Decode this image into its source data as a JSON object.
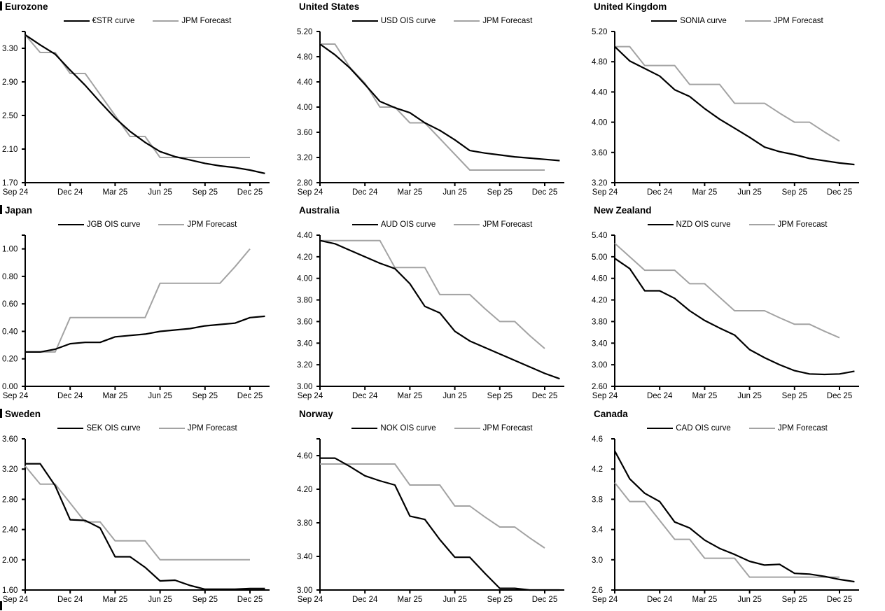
{
  "x_axis": {
    "tick_labels": [
      "Sep 24",
      "Dec 24",
      "Mar 25",
      "Jun 25",
      "Sep 25",
      "Dec 25"
    ],
    "tick_months": [
      0,
      3,
      6,
      9,
      12,
      15
    ],
    "months_total": 16
  },
  "colors": {
    "curve": "#000000",
    "forecast": "#a3a3a3",
    "axis": "#000000"
  },
  "chart_data": [
    {
      "type": "line",
      "title": "Eurozone",
      "ylim": [
        1.7,
        3.5
      ],
      "yticks": [
        1.7,
        2.1,
        2.5,
        2.9,
        3.3
      ],
      "decimals": 2,
      "top_tick": true,
      "series": [
        {
          "name": "€STR curve",
          "color": "#000000",
          "values": [
            3.46,
            3.34,
            3.23,
            3.04,
            2.86,
            2.66,
            2.47,
            2.31,
            2.18,
            2.07,
            2.01,
            1.97,
            1.93,
            1.9,
            1.88,
            1.85,
            1.81
          ]
        },
        {
          "name": "JPM Forecast",
          "color": "#a3a3a3",
          "values": [
            3.46,
            3.25,
            3.25,
            3.0,
            3.0,
            2.75,
            2.5,
            2.25,
            2.25,
            2.0,
            2.0,
            2.0,
            2.0,
            2.0,
            2.0,
            2.0
          ]
        }
      ]
    },
    {
      "type": "line",
      "title": "United States",
      "ylim": [
        2.8,
        5.2
      ],
      "yticks": [
        2.8,
        3.2,
        3.6,
        4.0,
        4.4,
        4.8,
        5.2
      ],
      "decimals": 2,
      "top_tick": false,
      "series": [
        {
          "name": "USD OIS curve",
          "color": "#000000",
          "values": [
            5.0,
            4.83,
            4.62,
            4.36,
            4.09,
            3.99,
            3.91,
            3.75,
            3.63,
            3.48,
            3.31,
            3.27,
            3.24,
            3.21,
            3.19,
            3.17,
            3.15
          ]
        },
        {
          "name": "JPM Forecast",
          "color": "#a3a3a3",
          "values": [
            5.0,
            5.0,
            4.63,
            4.38,
            4.0,
            4.0,
            3.75,
            3.75,
            3.5,
            3.25,
            3.0,
            3.0,
            3.0,
            3.0,
            3.0,
            3.0
          ]
        }
      ]
    },
    {
      "type": "line",
      "title": "United Kingdom",
      "ylim": [
        3.2,
        5.2
      ],
      "yticks": [
        3.2,
        3.6,
        4.0,
        4.4,
        4.8,
        5.2
      ],
      "decimals": 2,
      "top_tick": false,
      "series": [
        {
          "name": "SONIA curve",
          "color": "#000000",
          "values": [
            5.0,
            4.81,
            4.71,
            4.61,
            4.43,
            4.34,
            4.18,
            4.04,
            3.92,
            3.8,
            3.67,
            3.61,
            3.57,
            3.52,
            3.49,
            3.46,
            3.44
          ]
        },
        {
          "name": "JPM Forecast",
          "color": "#a3a3a3",
          "values": [
            5.0,
            5.0,
            4.75,
            4.75,
            4.75,
            4.5,
            4.5,
            4.5,
            4.25,
            4.25,
            4.25,
            4.12,
            4.0,
            4.0,
            3.87,
            3.75
          ]
        }
      ]
    },
    {
      "type": "line",
      "title": "Japan",
      "ylim": [
        0.0,
        1.1
      ],
      "yticks": [
        0.0,
        0.2,
        0.4,
        0.6,
        0.8,
        1.0
      ],
      "decimals": 2,
      "top_tick": true,
      "series": [
        {
          "name": "JGB OIS curve",
          "color": "#000000",
          "values": [
            0.25,
            0.25,
            0.27,
            0.31,
            0.32,
            0.32,
            0.36,
            0.37,
            0.38,
            0.4,
            0.41,
            0.42,
            0.44,
            0.45,
            0.46,
            0.5,
            0.51
          ]
        },
        {
          "name": "JPM Forecast",
          "color": "#a3a3a3",
          "values": [
            0.25,
            0.25,
            0.25,
            0.5,
            0.5,
            0.5,
            0.5,
            0.5,
            0.5,
            0.75,
            0.75,
            0.75,
            0.75,
            0.75,
            0.87,
            1.0
          ]
        }
      ]
    },
    {
      "type": "line",
      "title": "Australia",
      "ylim": [
        3.0,
        4.4
      ],
      "yticks": [
        3.0,
        3.2,
        3.4,
        3.6,
        3.8,
        4.0,
        4.2,
        4.4
      ],
      "decimals": 2,
      "top_tick": false,
      "series": [
        {
          "name": "AUD OIS curve",
          "color": "#000000",
          "values": [
            4.35,
            4.32,
            4.26,
            4.2,
            4.14,
            4.09,
            3.95,
            3.74,
            3.68,
            3.51,
            3.42,
            3.36,
            3.3,
            3.24,
            3.18,
            3.12,
            3.07
          ]
        },
        {
          "name": "JPM Forecast",
          "color": "#a3a3a3",
          "values": [
            4.35,
            4.35,
            4.35,
            4.35,
            4.35,
            4.1,
            4.1,
            4.1,
            3.85,
            3.85,
            3.85,
            3.72,
            3.6,
            3.6,
            3.47,
            3.35
          ]
        }
      ]
    },
    {
      "type": "line",
      "title": "New Zealand",
      "ylim": [
        2.6,
        5.4
      ],
      "yticks": [
        2.6,
        3.0,
        3.4,
        3.8,
        4.2,
        4.6,
        5.0,
        5.4
      ],
      "decimals": 2,
      "top_tick": false,
      "series": [
        {
          "name": "NZD OIS curve",
          "color": "#000000",
          "values": [
            4.97,
            4.78,
            4.37,
            4.37,
            4.23,
            4.0,
            3.82,
            3.68,
            3.55,
            3.28,
            3.13,
            3.0,
            2.89,
            2.83,
            2.82,
            2.83,
            2.88
          ]
        },
        {
          "name": "JPM Forecast",
          "color": "#a3a3a3",
          "values": [
            5.25,
            5.0,
            4.75,
            4.75,
            4.75,
            4.5,
            4.5,
            4.25,
            4.0,
            4.0,
            4.0,
            3.87,
            3.75,
            3.75,
            3.62,
            3.5
          ]
        }
      ]
    },
    {
      "type": "line",
      "title": "Sweden",
      "ylim": [
        1.6,
        3.6
      ],
      "yticks": [
        1.6,
        2.0,
        2.4,
        2.8,
        3.2,
        3.6
      ],
      "decimals": 2,
      "top_tick": false,
      "series": [
        {
          "name": "SEK OIS curve",
          "color": "#000000",
          "values": [
            3.27,
            3.27,
            2.98,
            2.53,
            2.52,
            2.42,
            2.04,
            2.04,
            1.9,
            1.72,
            1.73,
            1.66,
            1.61,
            1.61,
            1.61,
            1.62,
            1.62
          ]
        },
        {
          "name": "JPM Forecast",
          "color": "#a3a3a3",
          "values": [
            3.24,
            3.0,
            3.0,
            2.75,
            2.5,
            2.5,
            2.25,
            2.25,
            2.25,
            2.0,
            2.0,
            2.0,
            2.0,
            2.0,
            2.0,
            2.0
          ]
        }
      ]
    },
    {
      "type": "line",
      "title": "Norway",
      "ylim": [
        3.0,
        4.8
      ],
      "yticks": [
        3.0,
        3.4,
        3.8,
        4.2,
        4.6
      ],
      "decimals": 2,
      "top_tick": true,
      "series": [
        {
          "name": "NOK OIS curve",
          "color": "#000000",
          "values": [
            4.57,
            4.57,
            4.47,
            4.36,
            4.3,
            4.25,
            3.88,
            3.84,
            3.6,
            3.39,
            3.39,
            3.2,
            3.02,
            3.02,
            3.0,
            3.0,
            3.0
          ]
        },
        {
          "name": "JPM Forecast",
          "color": "#a3a3a3",
          "values": [
            4.5,
            4.5,
            4.5,
            4.5,
            4.5,
            4.5,
            4.25,
            4.25,
            4.25,
            4.0,
            4.0,
            3.87,
            3.75,
            3.75,
            3.62,
            3.5
          ]
        }
      ]
    },
    {
      "type": "line",
      "title": "Canada",
      "ylim": [
        2.6,
        4.6
      ],
      "yticks": [
        2.6,
        3.0,
        3.4,
        3.8,
        4.2,
        4.6
      ],
      "decimals": 1,
      "top_tick": false,
      "series": [
        {
          "name": "CAD OIS curve",
          "color": "#000000",
          "values": [
            4.44,
            4.07,
            3.88,
            3.77,
            3.5,
            3.42,
            3.26,
            3.15,
            3.07,
            2.98,
            2.93,
            2.94,
            2.82,
            2.81,
            2.78,
            2.74,
            2.71
          ]
        },
        {
          "name": "JPM Forecast",
          "color": "#a3a3a3",
          "values": [
            4.02,
            3.77,
            3.77,
            3.52,
            3.27,
            3.27,
            3.02,
            3.02,
            3.02,
            2.77,
            2.77,
            2.77,
            2.77,
            2.77,
            2.77,
            2.77
          ]
        }
      ]
    }
  ]
}
